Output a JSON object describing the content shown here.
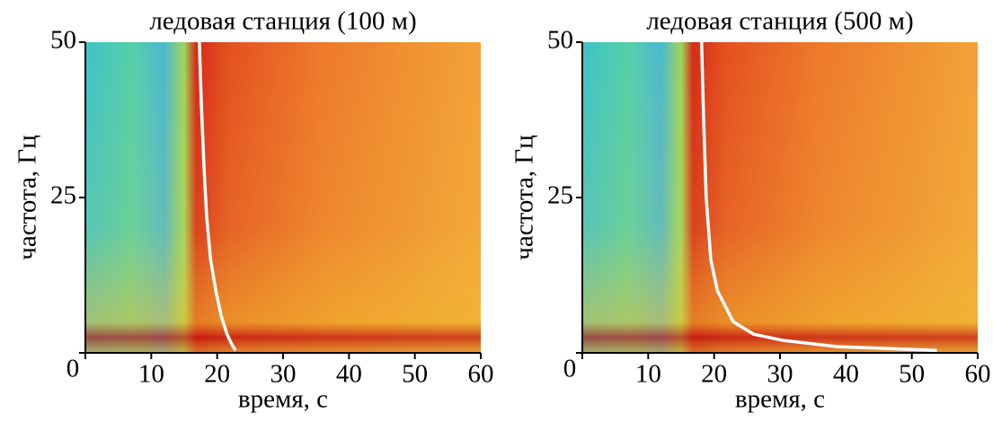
{
  "chart_data": [
    {
      "type": "line",
      "title": "ледовая станция (100 м)",
      "xlabel": "время, с",
      "ylabel": "частота, Гц",
      "xlim": [
        0,
        60
      ],
      "ylim": [
        0,
        50
      ],
      "xticks": [
        0,
        10,
        20,
        30,
        40,
        50,
        60
      ],
      "yticks": [
        0,
        25,
        50
      ],
      "series": [
        {
          "color": "#ffffff",
          "x": [
            17.3,
            17.6,
            18.0,
            18.4,
            19.0,
            19.8,
            20.6,
            21.5,
            22.3,
            22.8
          ],
          "values": [
            50,
            40,
            30,
            22,
            15,
            10,
            6,
            3,
            1.2,
            0.4
          ]
        }
      ]
    },
    {
      "type": "line",
      "title": "ледовая станция (500 м)",
      "xlabel": "время, с",
      "ylabel": "частота, Гц",
      "xlim": [
        0,
        60
      ],
      "ylim": [
        0,
        50
      ],
      "xticks": [
        0,
        10,
        20,
        30,
        40,
        50,
        60
      ],
      "yticks": [
        0,
        25,
        50
      ],
      "series": [
        {
          "color": "#ffffff",
          "x": [
            18.1,
            18.4,
            18.8,
            19.5,
            20.5,
            22.9,
            26.0,
            30.5,
            38.7,
            53.8
          ],
          "values": [
            50,
            38,
            25,
            15,
            10,
            5,
            3,
            2,
            1,
            0.4
          ]
        }
      ]
    }
  ]
}
